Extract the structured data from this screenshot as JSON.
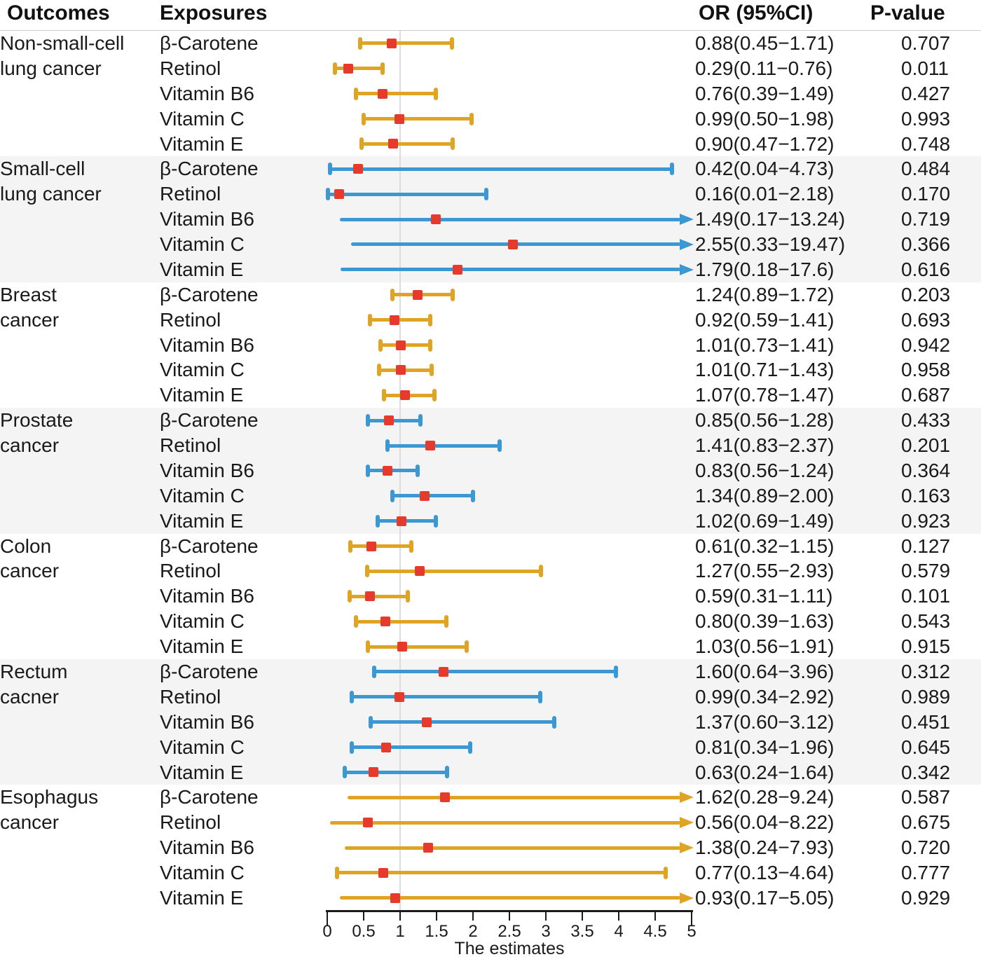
{
  "header": {
    "outcomes": "Outcomes",
    "exposures": "Exposures",
    "or_ci": "OR (95%CI)",
    "p_value": "P-value"
  },
  "axis": {
    "label": "The estimates",
    "min": 0,
    "max": 5,
    "reference_line": 1,
    "ticks": [
      {
        "v": 0,
        "label": "0"
      },
      {
        "v": 0.5,
        "label": "0.5"
      },
      {
        "v": 1,
        "label": "1"
      },
      {
        "v": 1.5,
        "label": "1.5"
      },
      {
        "v": 2,
        "label": "2"
      },
      {
        "v": 2.5,
        "label": "2.5"
      },
      {
        "v": 3,
        "label": "3"
      },
      {
        "v": 3.5,
        "label": "3.5"
      },
      {
        "v": 4,
        "label": "4"
      },
      {
        "v": 4.5,
        "label": "4.5"
      },
      {
        "v": 5,
        "label": "5"
      }
    ]
  },
  "colors": {
    "gold": "#E0A425",
    "blue": "#3B98D2",
    "marker": "#E63B2C",
    "band_shade": "#F4F4F4",
    "gridline": "#DCDCDC",
    "separator": "#CCCCCC",
    "axis": "#1A1A1A",
    "text": "#1A1A1A"
  },
  "chart_data": {
    "type": "forest",
    "title": "",
    "xlabel": "The estimates",
    "xlim": [
      0,
      5
    ],
    "reference_line": 1,
    "legend": "none",
    "groups": [
      {
        "outcome": "Non-small-cell lung cancer",
        "outcome_lines": [
          "Non-small-cell",
          "lung cancer"
        ],
        "color": "gold",
        "shaded": false,
        "rows": [
          {
            "exposure": "β-Carotene",
            "or": 0.88,
            "lo": 0.45,
            "hi": 1.71,
            "or_text": "0.88(0.45−1.71)",
            "p": "0.707",
            "arrow": false
          },
          {
            "exposure": "Retinol",
            "or": 0.29,
            "lo": 0.11,
            "hi": 0.76,
            "or_text": "0.29(0.11−0.76)",
            "p": "0.011",
            "arrow": false
          },
          {
            "exposure": "Vitamin B6",
            "or": 0.76,
            "lo": 0.39,
            "hi": 1.49,
            "or_text": "0.76(0.39−1.49)",
            "p": "0.427",
            "arrow": false
          },
          {
            "exposure": "Vitamin C",
            "or": 0.99,
            "lo": 0.5,
            "hi": 1.98,
            "or_text": "0.99(0.50−1.98)",
            "p": "0.993",
            "arrow": false
          },
          {
            "exposure": "Vitamin E",
            "or": 0.9,
            "lo": 0.47,
            "hi": 1.72,
            "or_text": "0.90(0.47−1.72)",
            "p": "0.748",
            "arrow": false
          }
        ]
      },
      {
        "outcome": "Small-cell lung cancer",
        "outcome_lines": [
          "Small-cell",
          "lung cancer"
        ],
        "color": "blue",
        "shaded": true,
        "rows": [
          {
            "exposure": "β-Carotene",
            "or": 0.42,
            "lo": 0.04,
            "hi": 4.73,
            "or_text": "0.42(0.04−4.73)",
            "p": "0.484",
            "arrow": false
          },
          {
            "exposure": "Retinol",
            "or": 0.16,
            "lo": 0.01,
            "hi": 2.18,
            "or_text": "0.16(0.01−2.18)",
            "p": "0.170",
            "arrow": false
          },
          {
            "exposure": "Vitamin B6",
            "or": 1.49,
            "lo": 0.17,
            "hi": 13.24,
            "or_text": "1.49(0.17−13.24)",
            "p": "0.719",
            "arrow": true
          },
          {
            "exposure": "Vitamin C",
            "or": 2.55,
            "lo": 0.33,
            "hi": 19.47,
            "or_text": "2.55(0.33−19.47)",
            "p": "0.366",
            "arrow": true
          },
          {
            "exposure": "Vitamin E",
            "or": 1.79,
            "lo": 0.18,
            "hi": 17.6,
            "or_text": "1.79(0.18−17.6)",
            "p": "0.616",
            "arrow": true
          }
        ]
      },
      {
        "outcome": "Breast cancer",
        "outcome_lines": [
          "Breast",
          "cancer"
        ],
        "color": "gold",
        "shaded": false,
        "rows": [
          {
            "exposure": "β-Carotene",
            "or": 1.24,
            "lo": 0.89,
            "hi": 1.72,
            "or_text": "1.24(0.89−1.72)",
            "p": "0.203",
            "arrow": false
          },
          {
            "exposure": "Retinol",
            "or": 0.92,
            "lo": 0.59,
            "hi": 1.41,
            "or_text": "0.92(0.59−1.41)",
            "p": "0.693",
            "arrow": false
          },
          {
            "exposure": "Vitamin B6",
            "or": 1.01,
            "lo": 0.73,
            "hi": 1.41,
            "or_text": "1.01(0.73−1.41)",
            "p": "0.942",
            "arrow": false
          },
          {
            "exposure": "Vitamin C",
            "or": 1.01,
            "lo": 0.71,
            "hi": 1.43,
            "or_text": "1.01(0.71−1.43)",
            "p": "0.958",
            "arrow": false
          },
          {
            "exposure": "Vitamin E",
            "or": 1.07,
            "lo": 0.78,
            "hi": 1.47,
            "or_text": "1.07(0.78−1.47)",
            "p": "0.687",
            "arrow": false
          }
        ]
      },
      {
        "outcome": "Prostate cancer",
        "outcome_lines": [
          "Prostate",
          "cancer"
        ],
        "color": "blue",
        "shaded": true,
        "rows": [
          {
            "exposure": "β-Carotene",
            "or": 0.85,
            "lo": 0.56,
            "hi": 1.28,
            "or_text": "0.85(0.56−1.28)",
            "p": "0.433",
            "arrow": false
          },
          {
            "exposure": "Retinol",
            "or": 1.41,
            "lo": 0.83,
            "hi": 2.37,
            "or_text": "1.41(0.83−2.37)",
            "p": "0.201",
            "arrow": false
          },
          {
            "exposure": "Vitamin B6",
            "or": 0.83,
            "lo": 0.56,
            "hi": 1.24,
            "or_text": "0.83(0.56−1.24)",
            "p": "0.364",
            "arrow": false
          },
          {
            "exposure": "Vitamin C",
            "or": 1.34,
            "lo": 0.89,
            "hi": 2.0,
            "or_text": "1.34(0.89−2.00)",
            "p": "0.163",
            "arrow": false
          },
          {
            "exposure": "Vitamin E",
            "or": 1.02,
            "lo": 0.69,
            "hi": 1.49,
            "or_text": "1.02(0.69−1.49)",
            "p": "0.923",
            "arrow": false
          }
        ]
      },
      {
        "outcome": "Colon cancer",
        "outcome_lines": [
          "Colon",
          "cancer"
        ],
        "color": "gold",
        "shaded": false,
        "rows": [
          {
            "exposure": "β-Carotene",
            "or": 0.61,
            "lo": 0.32,
            "hi": 1.15,
            "or_text": "0.61(0.32−1.15)",
            "p": "0.127",
            "arrow": false
          },
          {
            "exposure": "Retinol",
            "or": 1.27,
            "lo": 0.55,
            "hi": 2.93,
            "or_text": "1.27(0.55−2.93)",
            "p": "0.579",
            "arrow": false
          },
          {
            "exposure": "Vitamin B6",
            "or": 0.59,
            "lo": 0.31,
            "hi": 1.11,
            "or_text": "0.59(0.31−1.11)",
            "p": "0.101",
            "arrow": false
          },
          {
            "exposure": "Vitamin C",
            "or": 0.8,
            "lo": 0.39,
            "hi": 1.63,
            "or_text": "0.80(0.39−1.63)",
            "p": "0.543",
            "arrow": false
          },
          {
            "exposure": "Vitamin E",
            "or": 1.03,
            "lo": 0.56,
            "hi": 1.91,
            "or_text": "1.03(0.56−1.91)",
            "p": "0.915",
            "arrow": false
          }
        ]
      },
      {
        "outcome": "Rectum cacner",
        "outcome_lines": [
          "Rectum",
          "cacner"
        ],
        "color": "blue",
        "shaded": true,
        "rows": [
          {
            "exposure": "β-Carotene",
            "or": 1.6,
            "lo": 0.64,
            "hi": 3.96,
            "or_text": "1.60(0.64−3.96)",
            "p": "0.312",
            "arrow": false
          },
          {
            "exposure": "Retinol",
            "or": 0.99,
            "lo": 0.34,
            "hi": 2.92,
            "or_text": "0.99(0.34−2.92)",
            "p": "0.989",
            "arrow": false
          },
          {
            "exposure": "Vitamin B6",
            "or": 1.37,
            "lo": 0.6,
            "hi": 3.12,
            "or_text": "1.37(0.60−3.12)",
            "p": "0.451",
            "arrow": false
          },
          {
            "exposure": "Vitamin C",
            "or": 0.81,
            "lo": 0.34,
            "hi": 1.96,
            "or_text": "0.81(0.34−1.96)",
            "p": "0.645",
            "arrow": false
          },
          {
            "exposure": "Vitamin E",
            "or": 0.63,
            "lo": 0.24,
            "hi": 1.64,
            "or_text": "0.63(0.24−1.64)",
            "p": "0.342",
            "arrow": false
          }
        ]
      },
      {
        "outcome": "Esophagus cancer",
        "outcome_lines": [
          "Esophagus",
          "cancer"
        ],
        "color": "gold",
        "shaded": false,
        "rows": [
          {
            "exposure": "β-Carotene",
            "or": 1.62,
            "lo": 0.28,
            "hi": 9.24,
            "or_text": "1.62(0.28−9.24)",
            "p": "0.587",
            "arrow": true
          },
          {
            "exposure": "Retinol",
            "or": 0.56,
            "lo": 0.04,
            "hi": 8.22,
            "or_text": "0.56(0.04−8.22)",
            "p": "0.675",
            "arrow": true
          },
          {
            "exposure": "Vitamin B6",
            "or": 1.38,
            "lo": 0.24,
            "hi": 7.93,
            "or_text": "1.38(0.24−7.93)",
            "p": "0.720",
            "arrow": true
          },
          {
            "exposure": "Vitamin C",
            "or": 0.77,
            "lo": 0.13,
            "hi": 4.64,
            "or_text": "0.77(0.13−4.64)",
            "p": "0.777",
            "arrow": false
          },
          {
            "exposure": "Vitamin E",
            "or": 0.93,
            "lo": 0.17,
            "hi": 5.05,
            "or_text": "0.93(0.17−5.05)",
            "p": "0.929",
            "arrow": true
          }
        ]
      }
    ]
  }
}
